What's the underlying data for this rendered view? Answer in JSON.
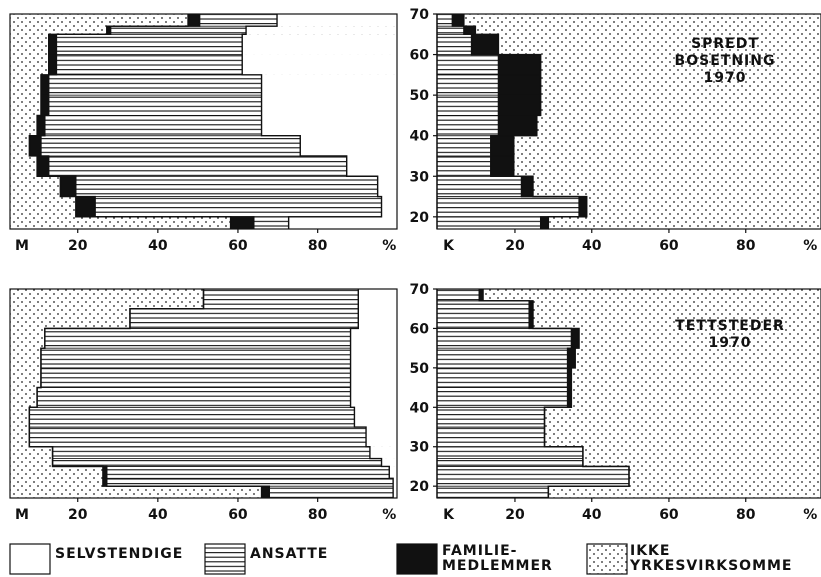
{
  "chart_data": [
    {
      "type": "bar",
      "panel": "men-dispersed",
      "orientation": "horizontal-stacked",
      "direction": "right-to-left",
      "age_groups": [
        [
          17,
          20
        ],
        [
          20,
          25
        ],
        [
          25,
          30
        ],
        [
          30,
          35
        ],
        [
          35,
          40
        ],
        [
          40,
          45
        ],
        [
          45,
          50
        ],
        [
          50,
          55
        ],
        [
          55,
          60
        ],
        [
          60,
          65
        ],
        [
          65,
          67
        ],
        [
          67,
          70
        ]
      ],
      "series": [
        {
          "key": "selvstendige",
          "values": [
            28,
            4,
            5,
            13,
            25,
            35,
            35,
            35,
            40,
            40,
            39,
            31
          ]
        },
        {
          "key": "ansatte",
          "values": [
            9,
            74,
            78,
            77,
            67,
            56,
            55,
            55,
            48,
            48,
            35,
            20
          ]
        },
        {
          "key": "familie",
          "values": [
            6,
            5,
            4,
            3,
            3,
            2,
            2,
            2,
            2,
            2,
            1,
            3
          ]
        },
        {
          "key": "ikke",
          "values": [
            57,
            17,
            13,
            7,
            5,
            7,
            8,
            8,
            10,
            10,
            25,
            46
          ]
        }
      ],
      "x_ticks": [
        "%",
        "80",
        "60",
        "40",
        "20",
        "M"
      ],
      "xlim": [
        0,
        100
      ],
      "grid": false
    },
    {
      "type": "bar",
      "panel": "women-dispersed",
      "orientation": "horizontal-stacked",
      "direction": "left-to-right",
      "title_lines": [
        "SPREDT",
        "BOSETNING",
        "1970"
      ],
      "age_groups": [
        [
          17,
          20
        ],
        [
          20,
          25
        ],
        [
          25,
          30
        ],
        [
          30,
          35
        ],
        [
          35,
          40
        ],
        [
          40,
          45
        ],
        [
          45,
          50
        ],
        [
          50,
          55
        ],
        [
          55,
          60
        ],
        [
          60,
          65
        ],
        [
          65,
          67
        ],
        [
          67,
          70
        ]
      ],
      "series": [
        {
          "key": "selvstendige",
          "values": [
            0,
            0,
            0,
            0,
            0,
            0,
            0,
            0,
            0,
            0,
            0,
            0
          ]
        },
        {
          "key": "ansatte",
          "values": [
            27,
            37,
            22,
            14,
            14,
            16,
            16,
            16,
            16,
            9,
            7,
            4
          ]
        },
        {
          "key": "familie",
          "values": [
            2,
            2,
            3,
            6,
            6,
            10,
            11,
            11,
            11,
            7,
            3,
            3
          ]
        },
        {
          "key": "ikke",
          "values": [
            71,
            61,
            75,
            80,
            80,
            74,
            73,
            73,
            73,
            84,
            90,
            93
          ]
        }
      ],
      "x_ticks": [
        "K",
        "20",
        "40",
        "60",
        "80",
        "%"
      ],
      "y_ticks": [
        "20",
        "30",
        "40",
        "50",
        "60",
        "70"
      ],
      "ylim": [
        17,
        70
      ],
      "xlim": [
        0,
        100
      ],
      "grid": false
    },
    {
      "type": "bar",
      "panel": "men-urban",
      "orientation": "horizontal-stacked",
      "direction": "right-to-left",
      "age_groups": [
        [
          17,
          20
        ],
        [
          20,
          22
        ],
        [
          22,
          25
        ],
        [
          25,
          27
        ],
        [
          27,
          30
        ],
        [
          30,
          35
        ],
        [
          35,
          40
        ],
        [
          40,
          45
        ],
        [
          45,
          50
        ],
        [
          50,
          55
        ],
        [
          55,
          60
        ],
        [
          60,
          65
        ],
        [
          65,
          70
        ]
      ],
      "series": [
        {
          "key": "selvstendige",
          "values": [
            1,
            1,
            2,
            4,
            7,
            8,
            11,
            12,
            12,
            12,
            12,
            10,
            10
          ]
        },
        {
          "key": "ansatte",
          "values": [
            32,
            74,
            73,
            85,
            82,
            87,
            84,
            81,
            80,
            80,
            79,
            59,
            40
          ]
        },
        {
          "key": "familie",
          "values": [
            2,
            1,
            1,
            0,
            0,
            0,
            0,
            0,
            0,
            0,
            0,
            0,
            0
          ]
        },
        {
          "key": "ikke",
          "values": [
            65,
            24,
            24,
            11,
            11,
            5,
            5,
            7,
            8,
            8,
            9,
            31,
            50
          ]
        }
      ],
      "x_ticks": [
        "%",
        "80",
        "60",
        "40",
        "20",
        "M"
      ],
      "xlim": [
        0,
        100
      ],
      "grid": false
    },
    {
      "type": "bar",
      "panel": "women-urban",
      "orientation": "horizontal-stacked",
      "direction": "left-to-right",
      "title_lines": [
        "TETTSTEDER",
        "1970"
      ],
      "age_groups": [
        [
          17,
          20
        ],
        [
          20,
          25
        ],
        [
          25,
          27
        ],
        [
          27,
          30
        ],
        [
          30,
          35
        ],
        [
          35,
          40
        ],
        [
          40,
          45
        ],
        [
          45,
          50
        ],
        [
          50,
          55
        ],
        [
          55,
          60
        ],
        [
          60,
          65
        ],
        [
          65,
          67
        ],
        [
          67,
          70
        ]
      ],
      "series": [
        {
          "key": "selvstendige",
          "values": [
            0,
            0,
            0,
            0,
            0,
            0,
            0,
            0,
            0,
            0,
            0,
            0,
            0
          ]
        },
        {
          "key": "ansatte",
          "values": [
            29,
            50,
            38,
            38,
            28,
            28,
            34,
            34,
            34,
            35,
            24,
            24,
            11
          ]
        },
        {
          "key": "familie",
          "values": [
            0,
            0,
            0,
            0,
            0,
            0,
            1,
            1,
            2,
            2,
            1,
            1,
            1
          ]
        },
        {
          "key": "ikke",
          "values": [
            71,
            50,
            62,
            62,
            72,
            72,
            65,
            65,
            64,
            63,
            75,
            75,
            88
          ]
        }
      ],
      "x_ticks": [
        "K",
        "20",
        "40",
        "60",
        "80",
        "%"
      ],
      "y_ticks": [
        "20",
        "30",
        "40",
        "50",
        "60",
        "70"
      ],
      "ylim": [
        17,
        70
      ],
      "xlim": [
        0,
        100
      ],
      "grid": false
    }
  ],
  "legend": {
    "items": [
      {
        "key": "selvstendige",
        "lines": [
          "SELVSTENDIGE"
        ],
        "pattern": "blank"
      },
      {
        "key": "ansatte",
        "lines": [
          "ANSATTE"
        ],
        "pattern": "hatched"
      },
      {
        "key": "familie",
        "lines": [
          "FAMILIE-",
          "MEDLEMMER"
        ],
        "pattern": "solid"
      },
      {
        "key": "ikke",
        "lines": [
          "IKKE",
          "YRKESVIRKSOMME"
        ],
        "pattern": "dotted"
      }
    ],
    "placement": "bottom"
  },
  "colors": {
    "ink": "#111111",
    "paper": "#ffffff"
  }
}
